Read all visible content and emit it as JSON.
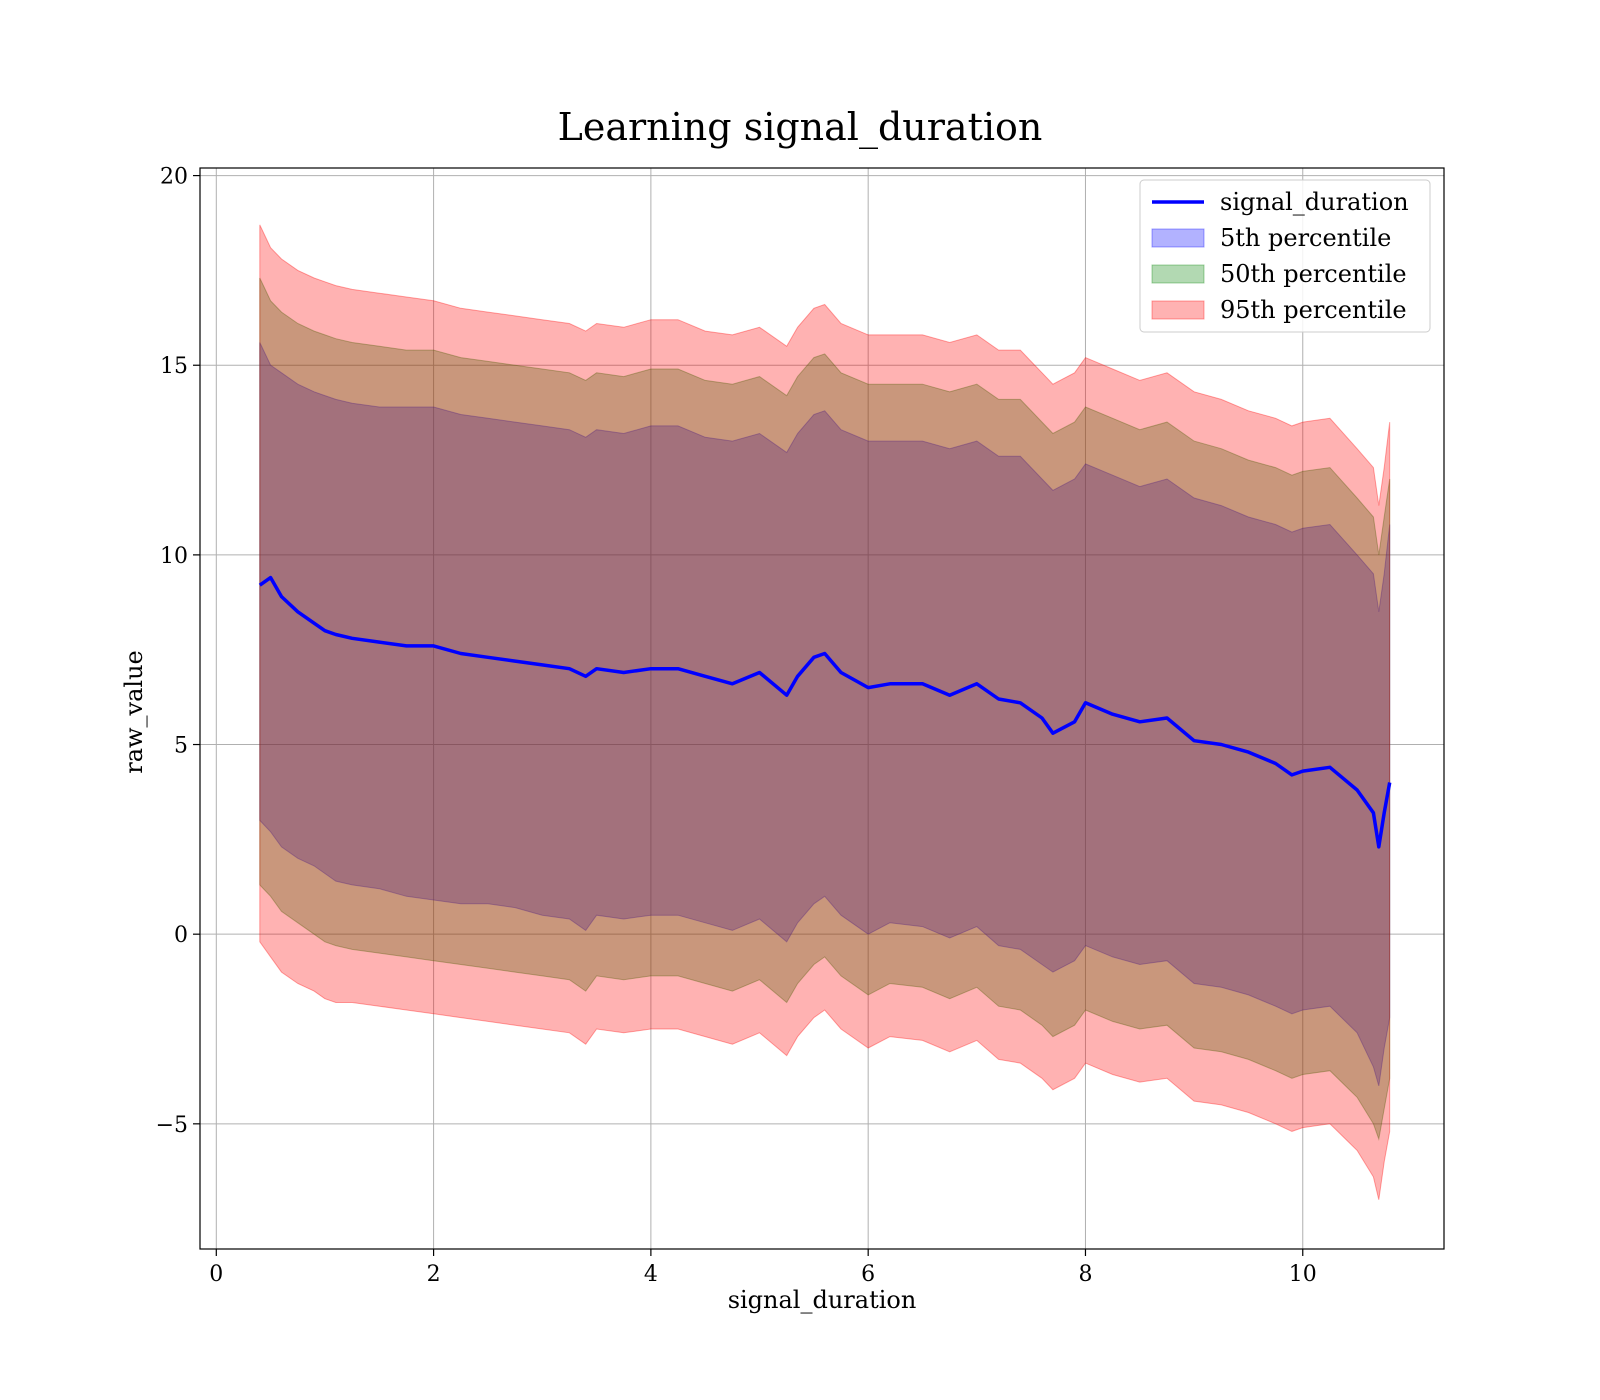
{
  "chart_data": {
    "type": "area",
    "title": "Learning signal_duration",
    "xlabel": "signal_duration",
    "ylabel": "raw_value",
    "xlim": [
      -0.15,
      11.3
    ],
    "ylim": [
      -8.3,
      20.2
    ],
    "xticks": [
      0,
      2,
      4,
      6,
      8,
      10
    ],
    "xtick_labels": [
      "0",
      "2",
      "4",
      "6",
      "8",
      "10"
    ],
    "yticks": [
      -5,
      0,
      5,
      10,
      15,
      20
    ],
    "ytick_labels": [
      "−5",
      "0",
      "5",
      "10",
      "15",
      "20"
    ],
    "grid": true,
    "legend": {
      "position": "top-right",
      "entries": [
        "signal_duration",
        "5th percentile",
        "50th percentile",
        "95th percentile"
      ]
    },
    "x": [
      0.4,
      0.5,
      0.6,
      0.75,
      0.9,
      1.0,
      1.1,
      1.25,
      1.5,
      1.75,
      2.0,
      2.25,
      2.5,
      2.75,
      3.0,
      3.25,
      3.4,
      3.5,
      3.75,
      4.0,
      4.25,
      4.5,
      4.75,
      5.0,
      5.25,
      5.35,
      5.5,
      5.6,
      5.75,
      6.0,
      6.2,
      6.5,
      6.75,
      7.0,
      7.2,
      7.4,
      7.6,
      7.7,
      7.9,
      8.0,
      8.25,
      8.5,
      8.75,
      9.0,
      9.25,
      9.5,
      9.75,
      9.9,
      10.0,
      10.25,
      10.5,
      10.65,
      10.7,
      10.75,
      10.8
    ],
    "series": [
      {
        "name": "signal_duration",
        "kind": "line",
        "color": "#0000ff",
        "values": [
          9.2,
          9.4,
          8.9,
          8.5,
          8.2,
          8.0,
          7.9,
          7.8,
          7.7,
          7.6,
          7.6,
          7.4,
          7.3,
          7.2,
          7.1,
          7.0,
          6.8,
          7.0,
          6.9,
          7.0,
          7.0,
          6.8,
          6.6,
          6.9,
          6.3,
          6.8,
          7.3,
          7.4,
          6.9,
          6.5,
          6.6,
          6.6,
          6.3,
          6.6,
          6.2,
          6.1,
          5.7,
          5.3,
          5.6,
          6.1,
          5.8,
          5.6,
          5.7,
          5.1,
          5.0,
          4.8,
          4.5,
          4.2,
          4.3,
          4.4,
          3.8,
          3.2,
          2.3,
          3.2,
          4.0
        ]
      },
      {
        "name": "5th percentile",
        "kind": "band",
        "color": "#0000ff",
        "opacity": 0.3,
        "lower": [
          3.0,
          2.7,
          2.3,
          2.0,
          1.8,
          1.6,
          1.4,
          1.3,
          1.2,
          1.0,
          0.9,
          0.8,
          0.8,
          0.7,
          0.5,
          0.4,
          0.1,
          0.5,
          0.4,
          0.5,
          0.5,
          0.3,
          0.1,
          0.4,
          -0.2,
          0.3,
          0.8,
          1.0,
          0.5,
          0.0,
          0.3,
          0.2,
          -0.1,
          0.2,
          -0.3,
          -0.4,
          -0.8,
          -1.0,
          -0.7,
          -0.3,
          -0.6,
          -0.8,
          -0.7,
          -1.3,
          -1.4,
          -1.6,
          -1.9,
          -2.1,
          -2.0,
          -1.9,
          -2.6,
          -3.5,
          -4.0,
          -3.0,
          -2.2
        ],
        "upper": [
          15.6,
          15.0,
          14.8,
          14.5,
          14.3,
          14.2,
          14.1,
          14.0,
          13.9,
          13.9,
          13.9,
          13.7,
          13.6,
          13.5,
          13.4,
          13.3,
          13.1,
          13.3,
          13.2,
          13.4,
          13.4,
          13.1,
          13.0,
          13.2,
          12.7,
          13.2,
          13.7,
          13.8,
          13.3,
          13.0,
          13.0,
          13.0,
          12.8,
          13.0,
          12.6,
          12.6,
          12.0,
          11.7,
          12.0,
          12.4,
          12.1,
          11.8,
          12.0,
          11.5,
          11.3,
          11.0,
          10.8,
          10.6,
          10.7,
          10.8,
          10.0,
          9.5,
          8.5,
          9.5,
          10.8
        ]
      },
      {
        "name": "50th percentile",
        "kind": "band",
        "color": "#008000",
        "opacity": 0.3,
        "lower": [
          1.3,
          1.0,
          0.6,
          0.3,
          0.0,
          -0.2,
          -0.3,
          -0.4,
          -0.5,
          -0.6,
          -0.7,
          -0.8,
          -0.9,
          -1.0,
          -1.1,
          -1.2,
          -1.5,
          -1.1,
          -1.2,
          -1.1,
          -1.1,
          -1.3,
          -1.5,
          -1.2,
          -1.8,
          -1.3,
          -0.8,
          -0.6,
          -1.1,
          -1.6,
          -1.3,
          -1.4,
          -1.7,
          -1.4,
          -1.9,
          -2.0,
          -2.4,
          -2.7,
          -2.4,
          -2.0,
          -2.3,
          -2.5,
          -2.4,
          -3.0,
          -3.1,
          -3.3,
          -3.6,
          -3.8,
          -3.7,
          -3.6,
          -4.3,
          -5.0,
          -5.4,
          -4.6,
          -3.8
        ],
        "upper": [
          17.3,
          16.7,
          16.4,
          16.1,
          15.9,
          15.8,
          15.7,
          15.6,
          15.5,
          15.4,
          15.4,
          15.2,
          15.1,
          15.0,
          14.9,
          14.8,
          14.6,
          14.8,
          14.7,
          14.9,
          14.9,
          14.6,
          14.5,
          14.7,
          14.2,
          14.7,
          15.2,
          15.3,
          14.8,
          14.5,
          14.5,
          14.5,
          14.3,
          14.5,
          14.1,
          14.1,
          13.5,
          13.2,
          13.5,
          13.9,
          13.6,
          13.3,
          13.5,
          13.0,
          12.8,
          12.5,
          12.3,
          12.1,
          12.2,
          12.3,
          11.5,
          11.0,
          10.0,
          11.0,
          12.0
        ]
      },
      {
        "name": "95th percentile",
        "kind": "band",
        "color": "#ff0000",
        "opacity": 0.3,
        "lower": [
          -0.2,
          -0.6,
          -1.0,
          -1.3,
          -1.5,
          -1.7,
          -1.8,
          -1.8,
          -1.9,
          -2.0,
          -2.1,
          -2.2,
          -2.3,
          -2.4,
          -2.5,
          -2.6,
          -2.9,
          -2.5,
          -2.6,
          -2.5,
          -2.5,
          -2.7,
          -2.9,
          -2.6,
          -3.2,
          -2.7,
          -2.2,
          -2.0,
          -2.5,
          -3.0,
          -2.7,
          -2.8,
          -3.1,
          -2.8,
          -3.3,
          -3.4,
          -3.8,
          -4.1,
          -3.8,
          -3.4,
          -3.7,
          -3.9,
          -3.8,
          -4.4,
          -4.5,
          -4.7,
          -5.0,
          -5.2,
          -5.1,
          -5.0,
          -5.7,
          -6.4,
          -7.0,
          -6.0,
          -5.2
        ],
        "upper": [
          18.7,
          18.1,
          17.8,
          17.5,
          17.3,
          17.2,
          17.1,
          17.0,
          16.9,
          16.8,
          16.7,
          16.5,
          16.4,
          16.3,
          16.2,
          16.1,
          15.9,
          16.1,
          16.0,
          16.2,
          16.2,
          15.9,
          15.8,
          16.0,
          15.5,
          16.0,
          16.5,
          16.6,
          16.1,
          15.8,
          15.8,
          15.8,
          15.6,
          15.8,
          15.4,
          15.4,
          14.8,
          14.5,
          14.8,
          15.2,
          14.9,
          14.6,
          14.8,
          14.3,
          14.1,
          13.8,
          13.6,
          13.4,
          13.5,
          13.6,
          12.8,
          12.3,
          11.3,
          12.3,
          13.5
        ]
      }
    ]
  }
}
